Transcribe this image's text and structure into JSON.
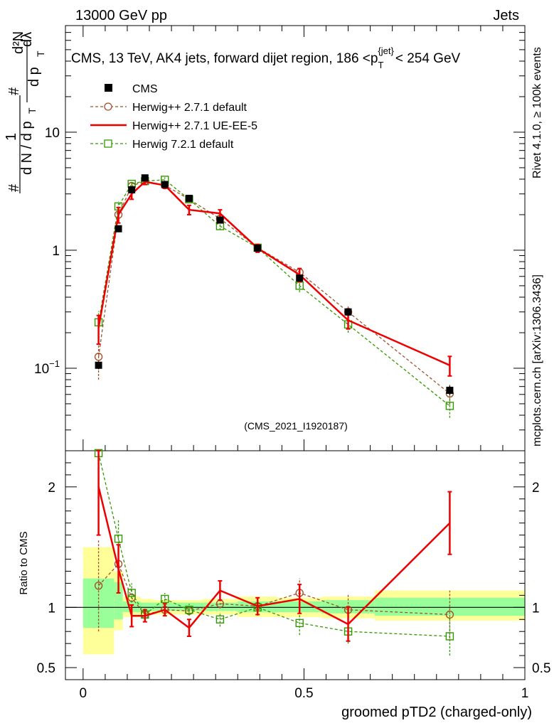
{
  "header": {
    "beam": "13000 GeV pp",
    "process": "Jets",
    "plot_id": "(CMS_2021_I1920187)",
    "side_rivet": "Rivet 4.1.0, ≥ 100k events",
    "side_mcplots": "mcplots.cern.ch [arXiv:1306.3436]"
  },
  "colors": {
    "cms": "#000000",
    "herwigpp_default": "#a0522d",
    "herwigpp_ueee5": "#ee0000",
    "herwig7_default": "#339900",
    "band_inner": "#99ff99",
    "band_outer": "#ffff99"
  },
  "chart_data": [
    {
      "type": "line",
      "panel": "main",
      "title": "CMS, 13 TeV, AK4 jets, forward dijet region, 186 <p_T^{jet}< 254 GeV",
      "title_parts": {
        "main": "CMS, 13 TeV, AK4 jets, forward dijet region, 186 <p",
        "sub": "T",
        "sup": "{jet}",
        "tail": "< 254 GeV"
      },
      "ylabel": "1/(dN/dp_T) d²N/(dp_T dλ)",
      "ylabel_parts": {
        "hash": "#",
        "one": "1",
        "dn": "d N / d p",
        "sub": "T",
        "d2n": "d²N",
        "dp": "d p",
        "dlam": "dλ"
      },
      "yscale": "log",
      "ylim": [
        0.02,
        80
      ],
      "xlim": [
        -0.04,
        1.0
      ],
      "yticks": [
        {
          "value": 0.1,
          "base": "10",
          "exp": "−1"
        },
        {
          "value": 1,
          "label": "1"
        },
        {
          "value": 10,
          "label": "10"
        }
      ],
      "x": [
        0.035,
        0.08,
        0.11,
        0.14,
        0.185,
        0.24,
        0.31,
        0.395,
        0.49,
        0.6,
        0.83
      ],
      "series": [
        {
          "name": "CMS",
          "style": "data",
          "values": [
            0.106,
            1.52,
            3.25,
            4.1,
            3.6,
            2.75,
            1.8,
            1.04,
            0.58,
            0.3,
            0.065
          ],
          "err": [
            0.008,
            0.05,
            0.1,
            0.12,
            0.1,
            0.08,
            0.05,
            0.04,
            0.03,
            0.02,
            0.006
          ]
        },
        {
          "name": "Herwig++ 2.7.1 default",
          "style": "dashed-circle",
          "values": [
            0.125,
            2.0,
            3.5,
            3.85,
            3.55,
            2.7,
            1.85,
            1.05,
            0.65,
            0.3,
            0.061
          ],
          "err": [
            0.045,
            0.2,
            0.2,
            0.15,
            0.15,
            0.12,
            0.1,
            0.06,
            0.06,
            0.04,
            0.012
          ]
        },
        {
          "name": "Herwig++ 2.7.1 UE-EE-5",
          "style": "solid",
          "values": [
            0.22,
            2.0,
            3.0,
            3.8,
            3.55,
            2.2,
            2.05,
            1.04,
            0.62,
            0.255,
            0.106
          ],
          "err": [
            0.06,
            0.3,
            0.3,
            0.2,
            0.2,
            0.2,
            0.15,
            0.08,
            0.08,
            0.04,
            0.02
          ]
        },
        {
          "name": "Herwig 7.2.1 default",
          "style": "dashed-square",
          "values": [
            0.245,
            2.35,
            3.65,
            3.85,
            3.95,
            2.7,
            1.6,
            1.05,
            0.5,
            0.235,
            0.048
          ],
          "err": [
            0.06,
            0.25,
            0.25,
            0.2,
            0.2,
            0.15,
            0.12,
            0.07,
            0.06,
            0.035,
            0.01
          ]
        }
      ]
    },
    {
      "type": "line",
      "panel": "ratio",
      "xlabel": "groomed pTD2 (charged-only)",
      "ylabel": "Ratio to CMS",
      "ylim": [
        0.4,
        2.3
      ],
      "xlim": [
        -0.04,
        1.0
      ],
      "yticks": [
        {
          "value": 0.5,
          "label": "0.5"
        },
        {
          "value": 1,
          "label": "1"
        },
        {
          "value": 2,
          "label": "2"
        }
      ],
      "xticks": [
        {
          "value": 0,
          "label": "0"
        },
        {
          "value": 0.5,
          "label": "0.5"
        },
        {
          "value": 1,
          "label": "1"
        }
      ],
      "bands": [
        {
          "x0": 0.0,
          "x1": 0.07,
          "inner": [
            0.83,
            1.24
          ],
          "outer": [
            0.61,
            1.5
          ]
        },
        {
          "x0": 0.07,
          "x1": 0.09,
          "inner": [
            0.9,
            1.21
          ],
          "outer": [
            0.81,
            1.3
          ]
        },
        {
          "x0": 0.09,
          "x1": 0.13,
          "inner": [
            0.96,
            1.05
          ],
          "outer": [
            0.92,
            1.09
          ]
        },
        {
          "x0": 0.13,
          "x1": 0.16,
          "inner": [
            0.97,
            1.04
          ],
          "outer": [
            0.94,
            1.07
          ]
        },
        {
          "x0": 0.16,
          "x1": 0.21,
          "inner": [
            0.97,
            1.04
          ],
          "outer": [
            0.94,
            1.06
          ]
        },
        {
          "x0": 0.21,
          "x1": 0.27,
          "inner": [
            0.97,
            1.04
          ],
          "outer": [
            0.94,
            1.06
          ]
        },
        {
          "x0": 0.27,
          "x1": 0.35,
          "inner": [
            0.97,
            1.04
          ],
          "outer": [
            0.94,
            1.07
          ]
        },
        {
          "x0": 0.35,
          "x1": 0.44,
          "inner": [
            0.96,
            1.05
          ],
          "outer": [
            0.92,
            1.09
          ]
        },
        {
          "x0": 0.44,
          "x1": 0.54,
          "inner": [
            0.96,
            1.05
          ],
          "outer": [
            0.92,
            1.08
          ]
        },
        {
          "x0": 0.54,
          "x1": 0.66,
          "inner": [
            0.95,
            1.06
          ],
          "outer": [
            0.91,
            1.09
          ]
        },
        {
          "x0": 0.66,
          "x1": 1.0,
          "inner": [
            0.93,
            1.08
          ],
          "outer": [
            0.89,
            1.14
          ]
        }
      ],
      "x": [
        0.035,
        0.08,
        0.11,
        0.14,
        0.185,
        0.24,
        0.31,
        0.395,
        0.49,
        0.6,
        0.83
      ],
      "series": [
        {
          "name": "Herwig++ 2.7.1 default",
          "style": "dashed-circle",
          "values": [
            1.18,
            1.36,
            1.08,
            0.94,
            0.98,
            0.97,
            1.03,
            1.01,
            1.12,
            0.98,
            0.94
          ],
          "err": [
            0.38,
            0.08,
            0.04,
            0.03,
            0.03,
            0.03,
            0.04,
            0.05,
            0.12,
            0.13,
            0.2
          ]
        },
        {
          "name": "Herwig++ 2.7.1 UE-EE-5",
          "style": "solid",
          "values": [
            2.0,
            1.32,
            0.93,
            0.93,
            0.98,
            0.83,
            1.14,
            1.01,
            1.07,
            0.86,
            1.7
          ],
          "err": [
            0.4,
            0.2,
            0.09,
            0.05,
            0.05,
            0.07,
            0.08,
            0.07,
            0.12,
            0.14,
            0.26
          ]
        },
        {
          "name": "Herwig 7.2.1 default",
          "style": "dashed-square",
          "values": [
            2.28,
            1.57,
            1.12,
            0.94,
            1.07,
            0.98,
            0.9,
            1.0,
            0.87,
            0.8,
            0.76
          ],
          "err": [
            0.4,
            0.16,
            0.08,
            0.05,
            0.05,
            0.05,
            0.06,
            0.07,
            0.1,
            0.1,
            0.16
          ]
        }
      ]
    }
  ]
}
